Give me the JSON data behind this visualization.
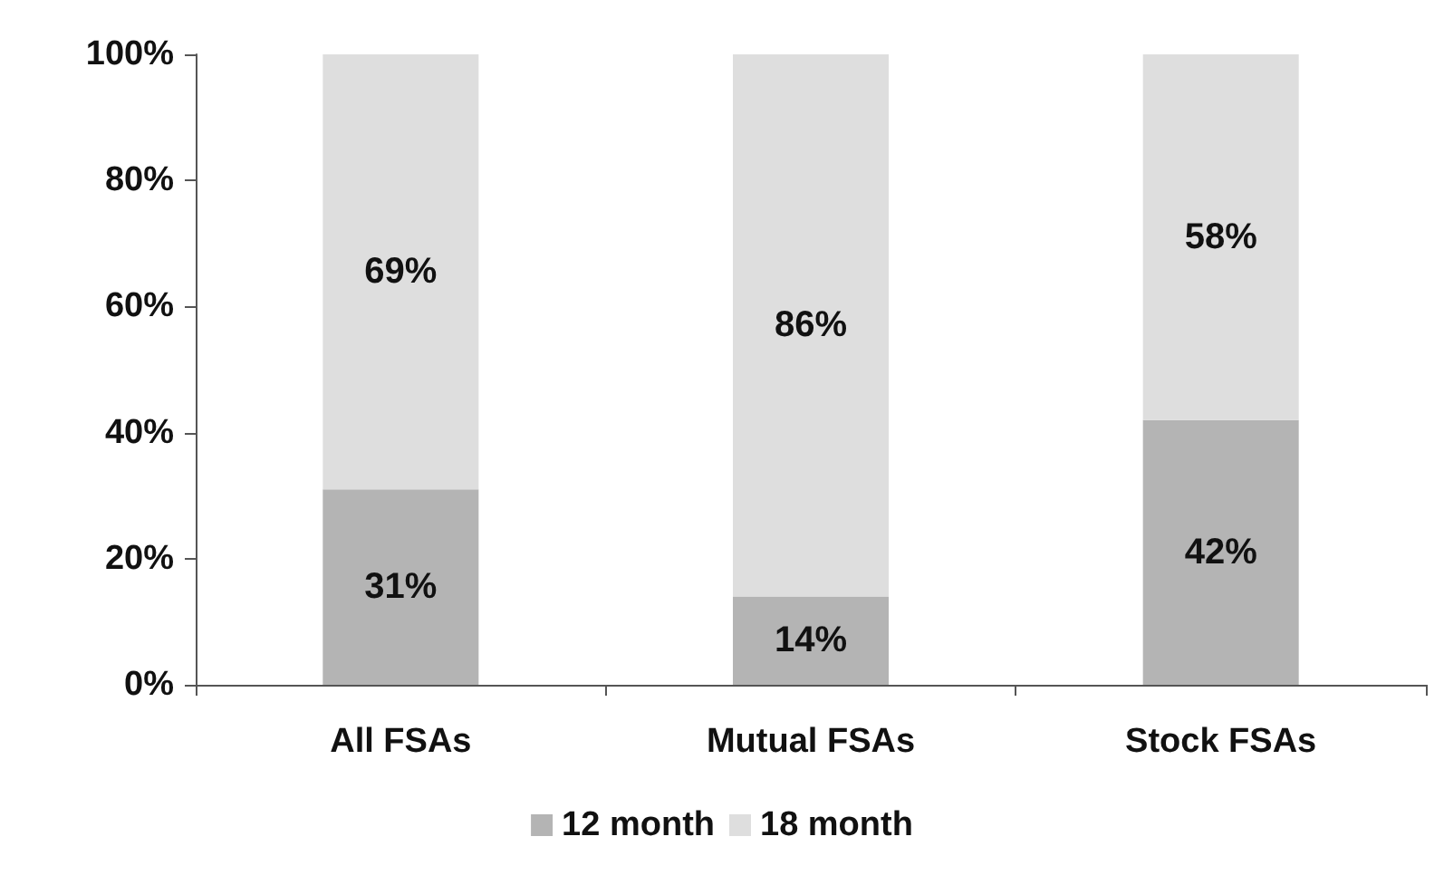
{
  "chart_data": {
    "type": "bar",
    "stacked": true,
    "categories": [
      "All FSAs",
      "Mutual FSAs",
      "Stock FSAs"
    ],
    "series": [
      {
        "name": "12 month",
        "color": "#b4b4b4",
        "values": [
          31,
          14,
          42
        ],
        "value_labels": [
          "31%",
          "14%",
          "42%"
        ]
      },
      {
        "name": "18 month",
        "color": "#dedede",
        "values": [
          69,
          86,
          58
        ],
        "value_labels": [
          "69%",
          "86%",
          "58%"
        ]
      }
    ],
    "ylim": [
      0,
      100
    ],
    "yticks": [
      {
        "value": 0,
        "label": "0%"
      },
      {
        "value": 20,
        "label": "20%"
      },
      {
        "value": 40,
        "label": "40%"
      },
      {
        "value": 60,
        "label": "60%"
      },
      {
        "value": 80,
        "label": "80%"
      },
      {
        "value": 100,
        "label": "100%"
      }
    ],
    "grid": false,
    "legend": "bottom"
  }
}
